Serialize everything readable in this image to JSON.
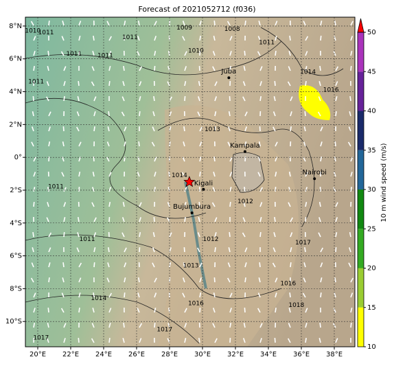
{
  "chart_data": {
    "type": "map",
    "title": "Forecast of 2021052712 (f036)",
    "xlim": [
      19.25,
      39.25
    ],
    "ylim": [
      -11.54,
      8.54
    ],
    "xticks": [
      {
        "value": 20,
        "label": "20°E"
      },
      {
        "value": 22,
        "label": "22°E"
      },
      {
        "value": 24,
        "label": "24°E"
      },
      {
        "value": 26,
        "label": "26°E"
      },
      {
        "value": 28,
        "label": "28°E"
      },
      {
        "value": 30,
        "label": "30°E"
      },
      {
        "value": 32,
        "label": "32°E"
      },
      {
        "value": 34,
        "label": "34°E"
      },
      {
        "value": 36,
        "label": "36°E"
      },
      {
        "value": 38,
        "label": "38°E"
      }
    ],
    "yticks": [
      {
        "value": 8,
        "label": "8°N"
      },
      {
        "value": 6,
        "label": "6°N"
      },
      {
        "value": 4,
        "label": "4°N"
      },
      {
        "value": 2,
        "label": "2°N"
      },
      {
        "value": 0,
        "label": "0°"
      },
      {
        "value": -2,
        "label": "2°S"
      },
      {
        "value": -4,
        "label": "4°S"
      },
      {
        "value": -6,
        "label": "6°S"
      },
      {
        "value": -8,
        "label": "8°S"
      },
      {
        "value": -10,
        "label": "10°S"
      }
    ],
    "grid": true,
    "cities": [
      {
        "name": "Juba",
        "lon": 31.6,
        "lat": 4.85
      },
      {
        "name": "Kampala",
        "lon": 32.58,
        "lat": 0.35
      },
      {
        "name": "Nairobi",
        "lon": 36.8,
        "lat": -1.3
      },
      {
        "name": "Kigali",
        "lon": 30.06,
        "lat": -1.95
      },
      {
        "name": "Bujumbura",
        "lon": 29.36,
        "lat": -3.38
      }
    ],
    "marker": {
      "lon": 29.2,
      "lat": -1.5,
      "color": "#ff0000"
    },
    "contour_labels": [
      {
        "text": "1010",
        "lon": 19.7,
        "lat": 7.7
      },
      {
        "text": "1011",
        "lon": 20.5,
        "lat": 7.6
      },
      {
        "text": "1011",
        "lon": 22.2,
        "lat": 6.3
      },
      {
        "text": "1011",
        "lon": 24.1,
        "lat": 6.2
      },
      {
        "text": "1011",
        "lon": 25.6,
        "lat": 7.3
      },
      {
        "text": "1009",
        "lon": 28.9,
        "lat": 7.9
      },
      {
        "text": "1010",
        "lon": 29.6,
        "lat": 6.5
      },
      {
        "text": "1008",
        "lon": 31.8,
        "lat": 7.8
      },
      {
        "text": "1011",
        "lon": 19.9,
        "lat": 4.6
      },
      {
        "text": "1013",
        "lon": 30.6,
        "lat": 1.7
      },
      {
        "text": "1011",
        "lon": 21.1,
        "lat": -1.8
      },
      {
        "text": "1014",
        "lon": 28.6,
        "lat": -1.1
      },
      {
        "text": "1012",
        "lon": 32.6,
        "lat": -2.7
      },
      {
        "text": "1011",
        "lon": 23.0,
        "lat": -5.0
      },
      {
        "text": "1012",
        "lon": 30.5,
        "lat": -5.0
      },
      {
        "text": "1013",
        "lon": 29.3,
        "lat": -6.6
      },
      {
        "text": "1017",
        "lon": 36.1,
        "lat": -5.2
      },
      {
        "text": "1016",
        "lon": 35.2,
        "lat": -7.7
      },
      {
        "text": "1014",
        "lon": 23.7,
        "lat": -8.6
      },
      {
        "text": "1016",
        "lon": 29.6,
        "lat": -8.9
      },
      {
        "text": "1018",
        "lon": 35.7,
        "lat": -9.0
      },
      {
        "text": "1017",
        "lon": 27.7,
        "lat": -10.5
      },
      {
        "text": "1017",
        "lon": 20.2,
        "lat": -11.0
      },
      {
        "text": "1014",
        "lon": 36.4,
        "lat": 5.2
      },
      {
        "text": "1016",
        "lon": 37.8,
        "lat": 4.1
      },
      {
        "text": "1011",
        "lon": 33.9,
        "lat": 7.0
      }
    ],
    "colorbar": {
      "label": "10 m wind speed (m/s)",
      "lim": [
        10,
        50
      ],
      "ticks": [
        10,
        15,
        20,
        25,
        30,
        35,
        40,
        45,
        50
      ],
      "bounds": [
        10,
        15,
        20,
        25,
        30,
        35,
        40,
        45,
        50
      ],
      "colors": [
        "#ffff00",
        "#9acd32",
        "#33aa22",
        "#118811",
        "#226699",
        "#1a2a6a",
        "#662299",
        "#aa33bb"
      ],
      "extend_color": "#ff0000"
    }
  }
}
